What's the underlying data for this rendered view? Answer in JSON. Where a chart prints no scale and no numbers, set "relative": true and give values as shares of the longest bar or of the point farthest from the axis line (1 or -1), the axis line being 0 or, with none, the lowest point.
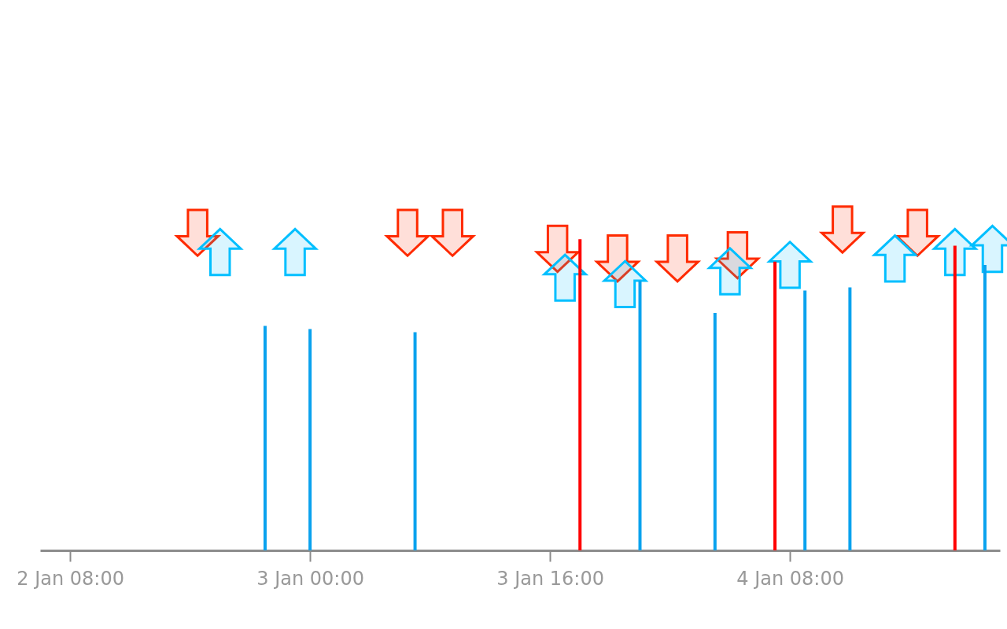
{
  "chart_data": {
    "type": "bar",
    "relative": true,
    "grid": false,
    "xlim": [
      "--01-02T06:00",
      "--01-04T22:00"
    ],
    "xticks": [
      {
        "value": "--01-02T08:00",
        "label": "2 Jan 08:00"
      },
      {
        "value": "--01-03T00:00",
        "label": "3 Jan 00:00"
      },
      {
        "value": "--01-03T16:00",
        "label": "3 Jan 16:00"
      },
      {
        "value": "--01-04T08:00",
        "label": "4 Jan 08:00"
      }
    ],
    "series": [
      {
        "type": "bar",
        "color": "#0aa2ee",
        "x": [
          "--01-02T21:00",
          "--01-03T00:00",
          "--01-03T07:00",
          "--01-03T22:00",
          "--01-04T03:00",
          "--01-04T09:00",
          "--01-04T12:00",
          "--01-04T21:00"
        ],
        "values": [
          0.7,
          0.69,
          0.68,
          0.84,
          0.74,
          0.81,
          0.82,
          0.89
        ]
      },
      {
        "type": "bar",
        "color": "#ff0000",
        "x": [
          "--01-03T18:00",
          "--01-04T07:00",
          "--01-04T19:00"
        ],
        "values": [
          0.97,
          0.9,
          0.95
        ]
      },
      {
        "type": "scatter",
        "color": "#ff2a00",
        "marker": "triangle-down",
        "x": [
          "--01-02T16:30",
          "--01-03T06:30",
          "--01-03T09:30",
          "--01-03T16:30",
          "--01-03T20:30",
          "--01-04T00:30",
          "--01-04T04:30",
          "--01-04T11:30",
          "--01-04T16:30"
        ],
        "values": [
          0.99,
          0.99,
          0.99,
          0.94,
          0.91,
          0.91,
          0.92,
          1,
          0.99
        ]
      },
      {
        "type": "scatter",
        "color": "#00bfff",
        "marker": "triangle",
        "x": [
          "--01-02T18:00",
          "--01-02T23:00",
          "--01-03T17:00",
          "--01-03T21:00",
          "--01-04T04:00",
          "--01-04T08:00",
          "--01-04T15:00",
          "--01-04T19:00",
          "--01-04T21:30"
        ],
        "values": [
          0.93,
          0.93,
          0.85,
          0.83,
          0.87,
          0.89,
          0.91,
          0.93,
          0.94
        ]
      }
    ]
  }
}
